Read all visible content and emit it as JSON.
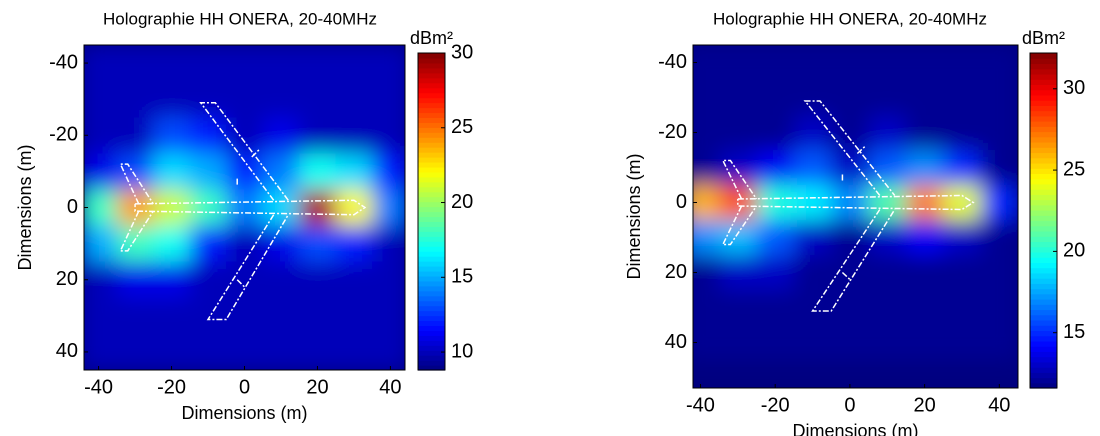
{
  "chart_data": [
    {
      "type": "heatmap",
      "title": "Holographie HH ONERA, 20-40MHz",
      "x_label": "Dimensions (m)",
      "y_label": "Dimensions (m)",
      "colorbar_label": "dBm²",
      "x": [
        -40,
        -30,
        -20,
        -10,
        0,
        10,
        20,
        30,
        40
      ],
      "y": [
        -40,
        -30,
        -20,
        -10,
        0,
        10,
        20,
        30,
        40
      ],
      "values": [
        [
          10,
          10,
          10,
          10,
          10,
          10,
          10,
          10,
          10
        ],
        [
          10,
          10,
          10,
          10,
          10,
          10,
          10,
          10,
          10
        ],
        [
          10,
          10,
          13,
          12,
          10,
          11,
          10,
          10,
          10
        ],
        [
          11,
          13,
          16,
          15,
          12,
          14,
          17,
          16,
          12
        ],
        [
          18,
          24,
          21,
          18,
          14,
          16,
          29,
          22,
          14
        ],
        [
          15,
          18,
          17,
          12,
          10,
          11,
          13,
          12,
          10
        ],
        [
          10,
          11,
          11,
          10,
          10,
          10,
          10,
          10,
          10
        ],
        [
          10,
          10,
          10,
          10,
          10,
          10,
          10,
          10,
          10
        ],
        [
          10,
          10,
          10,
          10,
          10,
          10,
          10,
          10,
          10
        ]
      ],
      "xlim": [
        -44,
        44
      ],
      "ylim": [
        -45,
        45
      ],
      "xticks": [
        -40,
        -20,
        0,
        20,
        40
      ],
      "yticks": [
        -40,
        -20,
        0,
        20,
        40
      ],
      "clim": [
        8.8,
        30
      ],
      "cticks": [
        10,
        15,
        20,
        25,
        30
      ],
      "colormap": "jet"
    },
    {
      "type": "heatmap",
      "title": "Holographie HH ONERA, 20-40MHz",
      "x_label": "Dimensions (m)",
      "y_label": "Dimensions (m)",
      "colorbar_label": "dBm²",
      "x": [
        -40,
        -30,
        -20,
        -10,
        0,
        10,
        20,
        30,
        40
      ],
      "y": [
        -40,
        -30,
        -20,
        -10,
        0,
        10,
        20,
        30,
        40
      ],
      "values": [
        [
          12,
          12,
          12,
          12,
          12,
          12,
          12,
          12,
          12
        ],
        [
          12,
          12,
          12,
          12,
          12,
          12,
          12,
          12,
          12
        ],
        [
          12,
          12,
          12,
          13,
          12,
          13,
          12,
          12,
          12
        ],
        [
          12,
          13,
          14,
          16,
          13,
          16,
          17,
          15,
          12
        ],
        [
          26,
          28,
          20,
          19,
          17,
          21,
          27,
          24,
          15
        ],
        [
          17,
          18,
          16,
          13,
          12,
          13,
          14,
          13,
          12
        ],
        [
          12,
          13,
          13,
          12,
          12,
          12,
          12,
          12,
          12
        ],
        [
          12,
          12,
          12,
          12,
          12,
          12,
          12,
          12,
          12
        ],
        [
          12,
          12,
          12,
          12,
          12,
          12,
          12,
          12,
          12
        ]
      ],
      "xlim": [
        -42,
        45
      ],
      "ylim": [
        -45,
        53
      ],
      "xticks": [
        -40,
        -20,
        0,
        20,
        40
      ],
      "yticks": [
        -40,
        -20,
        0,
        20,
        40
      ],
      "clim": [
        11.6,
        32.2
      ],
      "cticks": [
        15,
        20,
        25,
        30
      ],
      "colormap": "jet"
    }
  ]
}
